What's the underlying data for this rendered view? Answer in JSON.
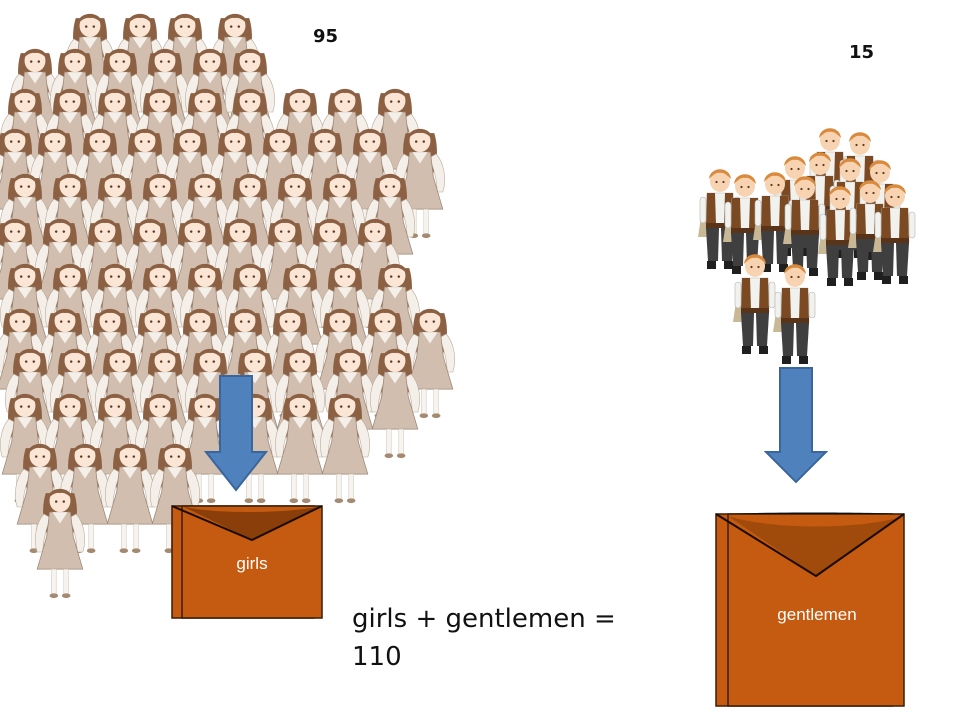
{
  "counts": {
    "girls": "95",
    "gentlemen": "15"
  },
  "boxes": {
    "girls_label": "girls",
    "gentlemen_label": "gentlemen"
  },
  "equation": {
    "line1": "girls + gentlemen =",
    "line2": "110"
  },
  "colors": {
    "box_fill": "#c55a11",
    "box_edge": "#3a1c05",
    "arrow_fill": "#4f81bd",
    "arrow_edge": "#3a669c",
    "girl_dress": "#d1beae",
    "girl_hair": "#8c6042",
    "boy_vest": "#7b4a22",
    "boy_pants": "#3f3f3f",
    "boy_hair": "#d98a3d"
  },
  "icons": {
    "girls_crowd": "girls-crowd-illustration",
    "gentlemen_crowd": "gentlemen-crowd-illustration",
    "arrow": "down-arrow-icon",
    "box": "envelope-box-icon"
  }
}
